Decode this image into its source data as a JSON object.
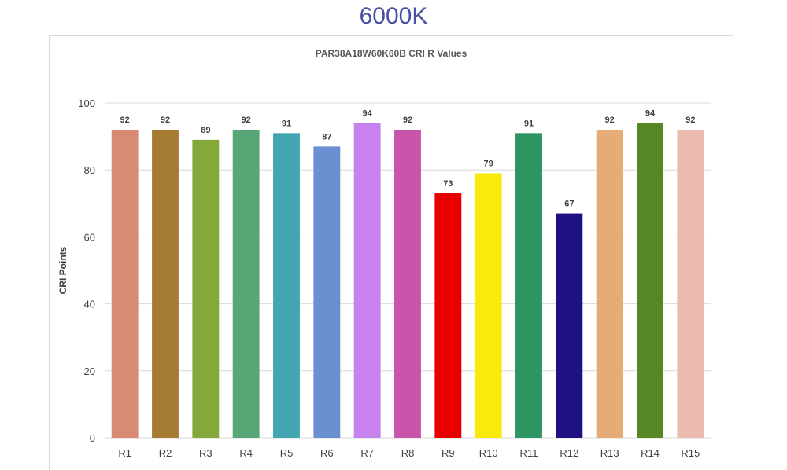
{
  "heading": "6000K",
  "chart_data": {
    "type": "bar",
    "title": "PAR38A18W60K60B CRI R Values",
    "xlabel": "",
    "ylabel": "CRI Points",
    "ylim": [
      0,
      100
    ],
    "yticks": [
      0,
      20,
      40,
      60,
      80,
      100
    ],
    "grid": true,
    "legend": "none",
    "data_labels": true,
    "categories": [
      "R1",
      "R2",
      "R3",
      "R4",
      "R5",
      "R6",
      "R7",
      "R8",
      "R9",
      "R10",
      "R11",
      "R12",
      "R13",
      "R14",
      "R15"
    ],
    "values": [
      92,
      92,
      89,
      92,
      91,
      87,
      94,
      92,
      73,
      79,
      91,
      67,
      92,
      94,
      92
    ],
    "colors": [
      "#d98a74",
      "#a67c35",
      "#84a83a",
      "#56a775",
      "#43a4b2",
      "#6b90d2",
      "#c782ee",
      "#c855a9",
      "#e80000",
      "#f9e90c",
      "#2c9561",
      "#1d1184",
      "#e5ad75",
      "#558824",
      "#ecbaae"
    ]
  }
}
